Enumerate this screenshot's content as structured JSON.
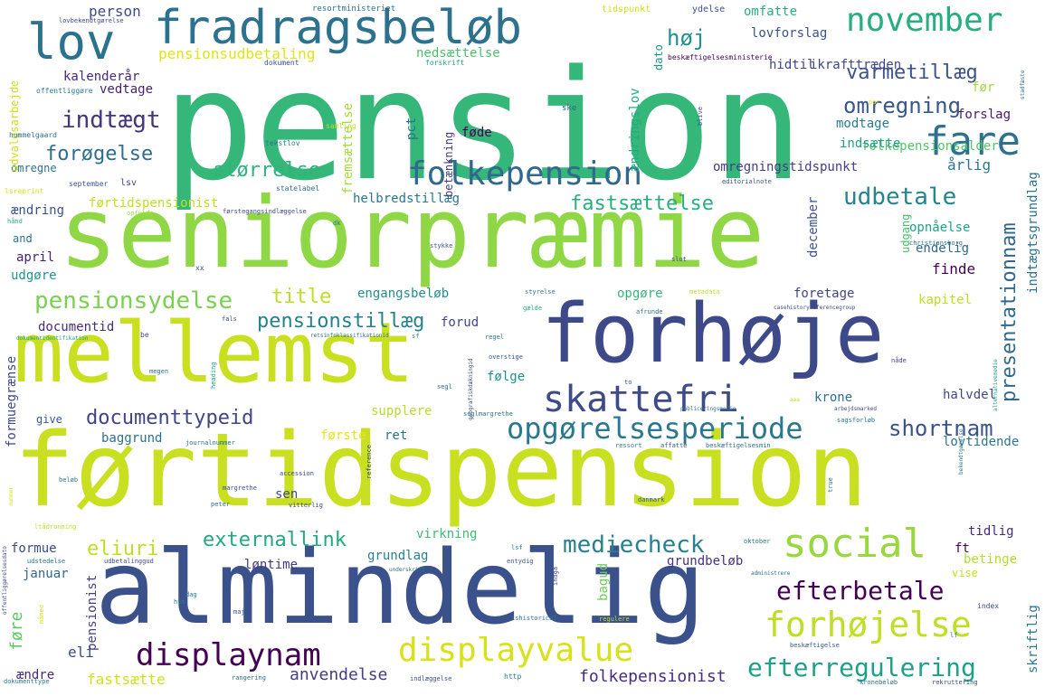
{
  "word_cloud": {
    "words": [
      {
        "text": "pension",
        "color": "#35b779"
      },
      {
        "text": "seniorpræmie",
        "color": "#8fd744"
      },
      {
        "text": "førtidspension",
        "color": "#c8e020"
      },
      {
        "text": "almindelig",
        "color": "#3b518b"
      },
      {
        "text": "forhøje",
        "color": "#3e4989"
      },
      {
        "text": "mellemst",
        "color": "#c8e020"
      },
      {
        "text": "fradragsbeløb",
        "color": "#2c728e"
      },
      {
        "text": "november",
        "color": "#28ae80"
      },
      {
        "text": "lov",
        "color": "#2c728e"
      },
      {
        "text": "folkepension",
        "color": "#31688e"
      },
      {
        "text": "fare",
        "color": "#2c728e"
      },
      {
        "text": "skattefri",
        "color": "#3e4a89"
      },
      {
        "text": "social",
        "color": "#98d83e"
      },
      {
        "text": "displaynam",
        "color": "#440154"
      },
      {
        "text": "displayvalue",
        "color": "#d8e219"
      },
      {
        "text": "forhøjelse",
        "color": "#bddf26"
      },
      {
        "text": "opgørelsesperiode",
        "color": "#2a788e"
      },
      {
        "text": "pensionsydelse",
        "color": "#7ad151"
      },
      {
        "text": "documenttypeid",
        "color": "#414487"
      },
      {
        "text": "efterbetale",
        "color": "#440154"
      },
      {
        "text": "efterregulering",
        "color": "#1fa187"
      },
      {
        "text": "mediecheck",
        "color": "#26828e"
      },
      {
        "text": "externallink",
        "color": "#22a884"
      },
      {
        "text": "udbetale",
        "color": "#25858e"
      },
      {
        "text": "varmetillæg",
        "color": "#3b528b"
      },
      {
        "text": "omregning",
        "color": "#38588c"
      },
      {
        "text": "indtægt",
        "color": "#463480"
      },
      {
        "text": "forøgelse",
        "color": "#2e6e8e"
      },
      {
        "text": "størrelse",
        "color": "#2fb47c"
      },
      {
        "text": "fastsættelse",
        "color": "#29af7f"
      },
      {
        "text": "pensionstillæg",
        "color": "#26828e"
      },
      {
        "text": "title",
        "color": "#bddf26"
      },
      {
        "text": "shortnam",
        "color": "#3b528b"
      },
      {
        "text": "eliuri",
        "color": "#bddf26"
      },
      {
        "text": "høj",
        "color": "#21918c"
      },
      {
        "text": "presentationnam",
        "color": "#31688e"
      },
      {
        "text": "anvendelse",
        "color": "#433e85"
      },
      {
        "text": "folkepensionist",
        "color": "#472d7b"
      },
      {
        "text": "fastsætte",
        "color": "#d0e11c"
      },
      {
        "text": "person",
        "color": "#3e4a89"
      },
      {
        "text": "pensionsudbetaling",
        "color": "#e2e418"
      },
      {
        "text": "nedsættelse",
        "color": "#4ac16d"
      },
      {
        "text": "omfatte",
        "color": "#2ab07f"
      },
      {
        "text": "lovforslag",
        "color": "#3b528b"
      },
      {
        "text": "hidtil",
        "color": "#414487"
      },
      {
        "text": "ikrafttræden",
        "color": "#3f4788"
      },
      {
        "text": "folkepensionsalder",
        "color": "#52c569"
      },
      {
        "text": "forslag",
        "color": "#481a6c"
      },
      {
        "text": "modtage",
        "color": "#287c8e"
      },
      {
        "text": "indsætte",
        "color": "#1f9e89"
      },
      {
        "text": "årlig",
        "color": "#2a788e"
      },
      {
        "text": "omregningstidspunkt",
        "color": "#433e85"
      },
      {
        "text": "kalenderår",
        "color": "#482878"
      },
      {
        "text": "vedtage",
        "color": "#481f70"
      },
      {
        "text": "omregne",
        "color": "#2c728e"
      },
      {
        "text": "førtidspensionist",
        "color": "#c2df23"
      },
      {
        "text": "helbredstillæg",
        "color": "#2a788e"
      },
      {
        "text": "ændring",
        "color": "#3b528b"
      },
      {
        "text": "and",
        "color": "#2c728e"
      },
      {
        "text": "april",
        "color": "#482173"
      },
      {
        "text": "udgøre",
        "color": "#1f958b"
      },
      {
        "text": "engangsbeløb",
        "color": "#228d8d"
      },
      {
        "text": "opgøre",
        "color": "#35b779"
      },
      {
        "text": "foretage",
        "color": "#3f4788"
      },
      {
        "text": "kapitel",
        "color": "#bddf26"
      },
      {
        "text": "opnåelse",
        "color": "#20a386"
      },
      {
        "text": "endelig",
        "color": "#31688e"
      },
      {
        "text": "finde",
        "color": "#440154"
      },
      {
        "text": "documentid",
        "color": "#472c7a"
      },
      {
        "text": "forud",
        "color": "#3e4989"
      },
      {
        "text": "følge",
        "color": "#21918c"
      },
      {
        "text": "supplere",
        "color": "#b5de2b"
      },
      {
        "text": "krone",
        "color": "#2d708e"
      },
      {
        "text": "halvdel",
        "color": "#3e4989"
      },
      {
        "text": "lovtidende",
        "color": "#2a768e"
      },
      {
        "text": "give",
        "color": "#39568c"
      },
      {
        "text": "baggrund",
        "color": "#2d718e"
      },
      {
        "text": "første",
        "color": "#e5e419"
      },
      {
        "text": "ret",
        "color": "#2c728e"
      },
      {
        "text": "sen",
        "color": "#3e4a89"
      },
      {
        "text": "virkning",
        "color": "#3dbc74"
      },
      {
        "text": "tidlig",
        "color": "#482878"
      },
      {
        "text": "ft",
        "color": "#440154"
      },
      {
        "text": "betinge",
        "color": "#b5de2b"
      },
      {
        "text": "vise",
        "color": "#c8e020"
      },
      {
        "text": "formue",
        "color": "#3e4989"
      },
      {
        "text": "januar",
        "color": "#31688e"
      },
      {
        "text": "løntime",
        "color": "#443983"
      },
      {
        "text": "grundlag",
        "color": "#277f8e"
      },
      {
        "text": "grundbeløb",
        "color": "#46327e"
      },
      {
        "text": "ændre",
        "color": "#482878"
      },
      {
        "text": "eli",
        "color": "#3e4a89"
      },
      {
        "text": "før",
        "color": "#a0da39"
      },
      {
        "text": "føre",
        "color": "#5ec962"
      },
      {
        "text": "fremsættelse",
        "color": "#a5db36"
      },
      {
        "text": "betænkning",
        "color": "#433e85"
      },
      {
        "text": "ændringslov",
        "color": "#25ab82"
      },
      {
        "text": "pct",
        "color": "#2c728e"
      },
      {
        "text": "føde",
        "color": "#440154"
      },
      {
        "text": "dato",
        "color": "#1f968b"
      },
      {
        "text": "udvalgsarbejde",
        "color": "#d0e11c"
      },
      {
        "text": "december",
        "color": "#3b528b"
      },
      {
        "text": "udgang",
        "color": "#4ac16d"
      },
      {
        "text": "indtægtsgrundlag",
        "color": "#2c728e"
      },
      {
        "text": "formuegrænse",
        "color": "#3e4989"
      },
      {
        "text": "pensionist",
        "color": "#433e85"
      },
      {
        "text": "bagud",
        "color": "#6ece58"
      },
      {
        "text": "skriftlig",
        "color": "#2a788e"
      },
      {
        "text": "tidspunkt",
        "color": "#d2e21b"
      },
      {
        "text": "ydelse",
        "color": "#3b528b"
      },
      {
        "text": "resortministeriet",
        "color": "#2c728e"
      },
      {
        "text": "beskæftigelsesministerie",
        "color": "#440154"
      },
      {
        "text": "dokument",
        "color": "#3e4a89"
      },
      {
        "text": "forskrift",
        "color": "#1f9e89"
      },
      {
        "text": "offentliggøre",
        "color": "#2a788e"
      },
      {
        "text": "lovbekendtgørelse",
        "color": "#3e4989"
      },
      {
        "text": "hummelgaard",
        "color": "#2c728e"
      },
      {
        "text": "september",
        "color": "#3b528b"
      },
      {
        "text": "lsv",
        "color": "#3e4989"
      },
      {
        "text": "tekstlov",
        "color": "#2a788e"
      },
      {
        "text": "statelabel",
        "color": "#2c728e"
      },
      {
        "text": "editorialnote",
        "color": "#38588c"
      },
      {
        "text": "samling",
        "color": "#bddf26"
      },
      {
        "text": "ske",
        "color": "#31688e"
      },
      {
        "text": "blive",
        "color": "#3e4989"
      },
      {
        "text": "per",
        "color": "#e5e419"
      },
      {
        "text": "stadfæste",
        "color": "#2c728e"
      },
      {
        "text": "lsreprint",
        "color": "#d8e219"
      },
      {
        "text": "hånd",
        "color": "#28ae80"
      },
      {
        "text": "opfylde",
        "color": "#a0da39"
      },
      {
        "text": "førstegangsindlæggelse",
        "color": "#3e4a89"
      },
      {
        "text": "dk",
        "color": "#2a788e"
      },
      {
        "text": "christiansborg",
        "color": "#2c728e"
      },
      {
        "text": "stykke",
        "color": "#38588c"
      },
      {
        "text": "slot",
        "color": "#3e4989"
      },
      {
        "text": "xx",
        "color": "#3b528b"
      },
      {
        "text": "styrelse",
        "color": "#2a788e"
      },
      {
        "text": "metadata",
        "color": "#bddf26"
      },
      {
        "text": "casehistoryreferencegroup",
        "color": "#3e4a89"
      },
      {
        "text": "gælde",
        "color": "#28ae80"
      },
      {
        "text": "afrunde",
        "color": "#2c728e"
      },
      {
        "text": "regel",
        "color": "#2a788e"
      },
      {
        "text": "fals",
        "color": "#3b528b"
      },
      {
        "text": "be",
        "color": "#3e4989"
      },
      {
        "text": "dokumentidentifikation",
        "color": "#1f9e89"
      },
      {
        "text": "retsinfoklassifikationid",
        "color": "#2c728e"
      },
      {
        "text": "sf",
        "color": "#2a788e"
      },
      {
        "text": "overstige",
        "color": "#38588c"
      },
      {
        "text": "nåde",
        "color": "#3e4989"
      },
      {
        "text": "megen",
        "color": "#2c728e"
      },
      {
        "text": "heading",
        "color": "#20a386"
      },
      {
        "text": "segl",
        "color": "#2c728e"
      },
      {
        "text": "geografiskdækningid",
        "color": "#3e4a89"
      },
      {
        "text": "seglmargrethe",
        "color": "#2a788e"
      },
      {
        "text": "to",
        "color": "#38588c"
      },
      {
        "text": "publiceringsmedie",
        "color": "#2c728e"
      },
      {
        "text": "arbejdsmarked",
        "color": "#3e4989"
      },
      {
        "text": "sagsforløb",
        "color": "#2a788e"
      },
      {
        "text": "alternativemedie",
        "color": "#1f9e89"
      },
      {
        "text": "aaa",
        "color": "#bddf26"
      },
      {
        "text": "journalnummer",
        "color": "#2c728e"
      },
      {
        "text": "reference",
        "color": "#3e4a89"
      },
      {
        "text": "ressort",
        "color": "#2a788e"
      },
      {
        "text": "affatte",
        "color": "#38588c"
      },
      {
        "text": "beskæftigelsesmin",
        "color": "#2c728e"
      },
      {
        "text": "accession",
        "color": "#3e4989"
      },
      {
        "text": "bekendtgørelse",
        "color": "#2a788e"
      },
      {
        "text": "beløb",
        "color": "#2c728e"
      },
      {
        "text": "margrethe",
        "color": "#3e4a89"
      },
      {
        "text": "true",
        "color": "#2a788e"
      },
      {
        "text": "nummer",
        "color": "#d8e219"
      },
      {
        "text": "danmark",
        "color": "#38588c"
      },
      {
        "text": "peter",
        "color": "#2c728e"
      },
      {
        "text": "vitterlig",
        "color": "#3e4989"
      },
      {
        "text": "ltådronning",
        "color": "#bddf26"
      },
      {
        "text": "oktober",
        "color": "#2a788e"
      },
      {
        "text": "udstedelse",
        "color": "#2c728e"
      },
      {
        "text": "udbetalinggud",
        "color": "#3e4a89"
      },
      {
        "text": "lsf",
        "color": "#2a788e"
      },
      {
        "text": "entydig",
        "color": "#38588c"
      },
      {
        "text": "administrere",
        "color": "#2c728e"
      },
      {
        "text": "offentliggørelsesdato",
        "color": "#3e4989"
      },
      {
        "text": "dag",
        "color": "#2a788e"
      },
      {
        "text": "underskrift",
        "color": "#2c728e"
      },
      {
        "text": "indgå",
        "color": "#3e4a89"
      },
      {
        "text": "htm",
        "color": "#2a788e"
      },
      {
        "text": "maj",
        "color": "#38588c"
      },
      {
        "text": "ishistorical",
        "color": "#2c728e"
      },
      {
        "text": "regulere",
        "color": "#bddf26"
      },
      {
        "text": "index",
        "color": "#3e4989"
      },
      {
        "text": "måned",
        "color": "#d8e219"
      },
      {
        "text": "dokumenttype",
        "color": "#2a788e"
      },
      {
        "text": "rangering",
        "color": "#2c728e"
      },
      {
        "text": "indlæggelse",
        "color": "#3e4a89"
      },
      {
        "text": "http",
        "color": "#2a788e"
      },
      {
        "text": "beskæftigelse",
        "color": "#38588c"
      },
      {
        "text": "kronebeløb",
        "color": "#2c728e"
      },
      {
        "text": "rekruttering",
        "color": "#3e4989"
      },
      {
        "text": "lf",
        "color": "#2a788e"
      }
    ]
  }
}
